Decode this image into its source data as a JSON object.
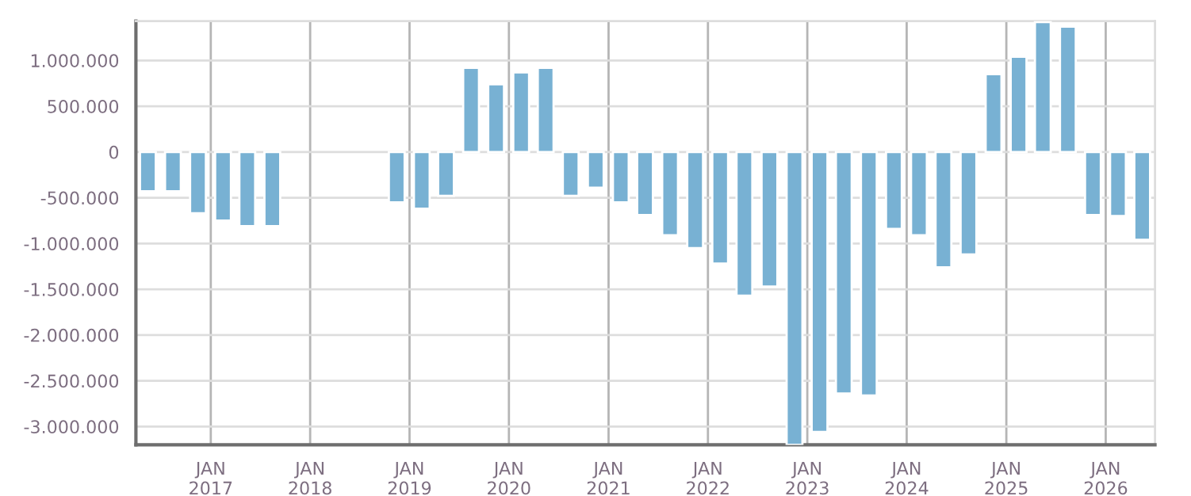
{
  "chart_data": {
    "type": "bar",
    "color": "#78b1d3",
    "x": [
      "2016-05-15",
      "2016-08-15",
      "2016-11-15",
      "2017-02-15",
      "2017-05-15",
      "2017-08-15",
      "2017-11-15",
      "2018-02-15",
      "2018-05-15",
      "2018-08-15",
      "2018-11-15",
      "2019-02-15",
      "2019-05-15",
      "2019-08-15",
      "2019-11-15",
      "2020-02-15",
      "2020-05-15",
      "2020-08-15",
      "2020-11-15",
      "2021-02-15",
      "2021-05-15",
      "2021-08-15",
      "2021-11-15",
      "2022-02-15",
      "2022-05-15",
      "2022-08-15",
      "2022-11-15",
      "2023-02-15",
      "2023-05-15",
      "2023-08-15",
      "2023-11-15",
      "2024-02-15",
      "2024-05-15",
      "2024-08-15",
      "2024-11-15",
      "2025-02-15",
      "2025-05-15",
      "2025-08-15",
      "2025-11-15",
      "2026-02-15",
      "2026-05-15"
    ],
    "values": [
      -430000,
      -430000,
      -670000,
      -750000,
      -810000,
      -810000,
      null,
      null,
      null,
      null,
      -550000,
      -620000,
      -480000,
      920000,
      740000,
      870000,
      920000,
      -480000,
      -390000,
      -550000,
      -690000,
      -910000,
      -1050000,
      -1220000,
      -1570000,
      -1470000,
      -3200000,
      -3060000,
      -2640000,
      -2660000,
      -840000,
      -910000,
      -1260000,
      -1120000,
      850000,
      1040000,
      1420000,
      1370000,
      -690000,
      -700000,
      -960000
    ],
    "xlim": [
      "2016-04-01",
      "2026-07-01"
    ],
    "xticks": [
      {
        "value": "2017-01-01",
        "label": "JAN\n2017"
      },
      {
        "value": "2018-01-01",
        "label": "JAN\n2018"
      },
      {
        "value": "2019-01-01",
        "label": "JAN\n2019"
      },
      {
        "value": "2020-01-01",
        "label": "JAN\n2020"
      },
      {
        "value": "2021-01-01",
        "label": "JAN\n2021"
      },
      {
        "value": "2022-01-01",
        "label": "JAN\n2022"
      },
      {
        "value": "2023-01-01",
        "label": "JAN\n2023"
      },
      {
        "value": "2024-01-01",
        "label": "JAN\n2024"
      },
      {
        "value": "2025-01-01",
        "label": "JAN\n2025"
      },
      {
        "value": "2026-01-01",
        "label": "JAN\n2026"
      }
    ],
    "ylim": [
      -3200000,
      1430000
    ],
    "yticks": [
      {
        "value": 1000000,
        "label": "1.000.000"
      },
      {
        "value": 500000,
        "label": "500.000"
      },
      {
        "value": 0,
        "label": "0"
      },
      {
        "value": -500000,
        "label": "-500.000"
      },
      {
        "value": -1000000,
        "label": "-1.000.000"
      },
      {
        "value": -1500000,
        "label": "-1.500.000"
      },
      {
        "value": -2000000,
        "label": "-2.000.000"
      },
      {
        "value": -2500000,
        "label": "-2.500.000"
      },
      {
        "value": -3000000,
        "label": "-3.000.000"
      }
    ],
    "grid": true
  }
}
